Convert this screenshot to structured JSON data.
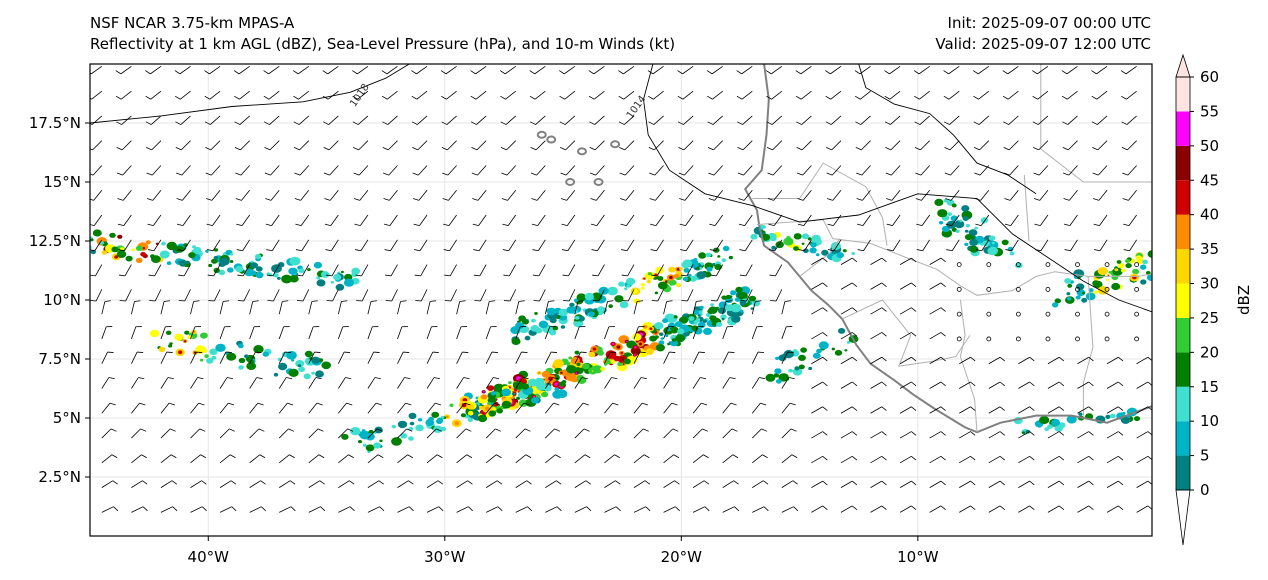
{
  "title": {
    "line1": "NSF NCAR 3.75-km MPAS-A",
    "line2": "Reflectivity at 1 km AGL (dBZ), Sea-Level Pressure (hPa), and 10-m Winds (kt)",
    "init": "Init: 2025-09-07 00:00 UTC",
    "valid": "Valid: 2025-09-07 12:00 UTC"
  },
  "axes": {
    "lon_ticks": [
      {
        "value": -40,
        "label": "40°W"
      },
      {
        "value": -30,
        "label": "30°W"
      },
      {
        "value": -20,
        "label": "20°W"
      },
      {
        "value": -10,
        "label": "10°W"
      }
    ],
    "lat_ticks": [
      {
        "value": 2.5,
        "label": "2.5°N"
      },
      {
        "value": 5,
        "label": "5°N"
      },
      {
        "value": 7.5,
        "label": "7.5°N"
      },
      {
        "value": 10,
        "label": "10°N"
      },
      {
        "value": 12.5,
        "label": "12.5°N"
      },
      {
        "value": 15,
        "label": "15°N"
      },
      {
        "value": 17.5,
        "label": "17.5°N"
      }
    ],
    "lon_range": [
      -45,
      -0.1
    ],
    "lat_range": [
      0,
      20
    ]
  },
  "isobars": [
    {
      "label": "1018",
      "label_at": [
        -33.5,
        18.6
      ],
      "points": [
        [
          -45,
          17.5
        ],
        [
          -42,
          17.8
        ],
        [
          -39,
          18.2
        ],
        [
          -36,
          18.4
        ],
        [
          -34,
          18.8
        ],
        [
          -32.5,
          19.4
        ],
        [
          -31.5,
          20
        ]
      ]
    },
    {
      "label": "1014",
      "label_at": [
        -21.8,
        18.1
      ],
      "points": [
        [
          -21.2,
          20
        ],
        [
          -21.6,
          18.5
        ],
        [
          -21.4,
          17
        ],
        [
          -20.5,
          15.5
        ],
        [
          -19,
          14.5
        ],
        [
          -17,
          14
        ],
        [
          -15,
          13.3
        ],
        [
          -12.5,
          13.6
        ],
        [
          -10,
          14.5
        ],
        [
          -7.5,
          14.3
        ],
        [
          -6,
          12.8
        ],
        [
          -4.5,
          11.8
        ],
        [
          -3,
          10.8
        ],
        [
          -1.5,
          10
        ],
        [
          -0.1,
          9.5
        ]
      ]
    },
    {
      "label": "",
      "label_at": [
        0,
        0
      ],
      "points": [
        [
          -12.5,
          20
        ],
        [
          -12.2,
          19
        ],
        [
          -11,
          18.3
        ],
        [
          -9.5,
          17.9
        ],
        [
          -8.5,
          17
        ],
        [
          -7.5,
          15.8
        ],
        [
          -6.2,
          15.3
        ],
        [
          -5,
          14.5
        ]
      ]
    }
  ],
  "colorbar": {
    "label": "dBZ",
    "ticks": [
      {
        "value": 0,
        "label": "0"
      },
      {
        "value": 5,
        "label": "5"
      },
      {
        "value": 10,
        "label": "10"
      },
      {
        "value": 15,
        "label": "15"
      },
      {
        "value": 20,
        "label": "20"
      },
      {
        "value": 25,
        "label": "25"
      },
      {
        "value": 30,
        "label": "30"
      },
      {
        "value": 35,
        "label": "35"
      },
      {
        "value": 40,
        "label": "40"
      },
      {
        "value": 45,
        "label": "45"
      },
      {
        "value": 50,
        "label": "50"
      },
      {
        "value": 55,
        "label": "55"
      },
      {
        "value": 60,
        "label": "60"
      }
    ],
    "bins": [
      {
        "from": 0,
        "to": 5,
        "color": "#008080"
      },
      {
        "from": 5,
        "to": 10,
        "color": "#00b4c8"
      },
      {
        "from": 10,
        "to": 15,
        "color": "#40e0d0"
      },
      {
        "from": 15,
        "to": 20,
        "color": "#008000"
      },
      {
        "from": 20,
        "to": 25,
        "color": "#32cd32"
      },
      {
        "from": 25,
        "to": 30,
        "color": "#ffff00"
      },
      {
        "from": 30,
        "to": 35,
        "color": "#ffd700"
      },
      {
        "from": 35,
        "to": 40,
        "color": "#ff8c00"
      },
      {
        "from": 40,
        "to": 45,
        "color": "#cc0000"
      },
      {
        "from": 45,
        "to": 50,
        "color": "#8b0000"
      },
      {
        "from": 50,
        "to": 55,
        "color": "#ff00ff"
      },
      {
        "from": 55,
        "to": 60,
        "color": "#ffe4e1"
      }
    ],
    "under_color": "#ffffff",
    "over_color": "#ffe4e1"
  },
  "colors": {
    "coastline": "#808080",
    "borders": "#b0b0b0",
    "isobar": "#000000",
    "gridline": "#e6e6e6"
  },
  "wind_barbs": "10-m wind barbs (kt) across domain, predominantly northeasterly north of 10°N and southwesterly in the south"
}
